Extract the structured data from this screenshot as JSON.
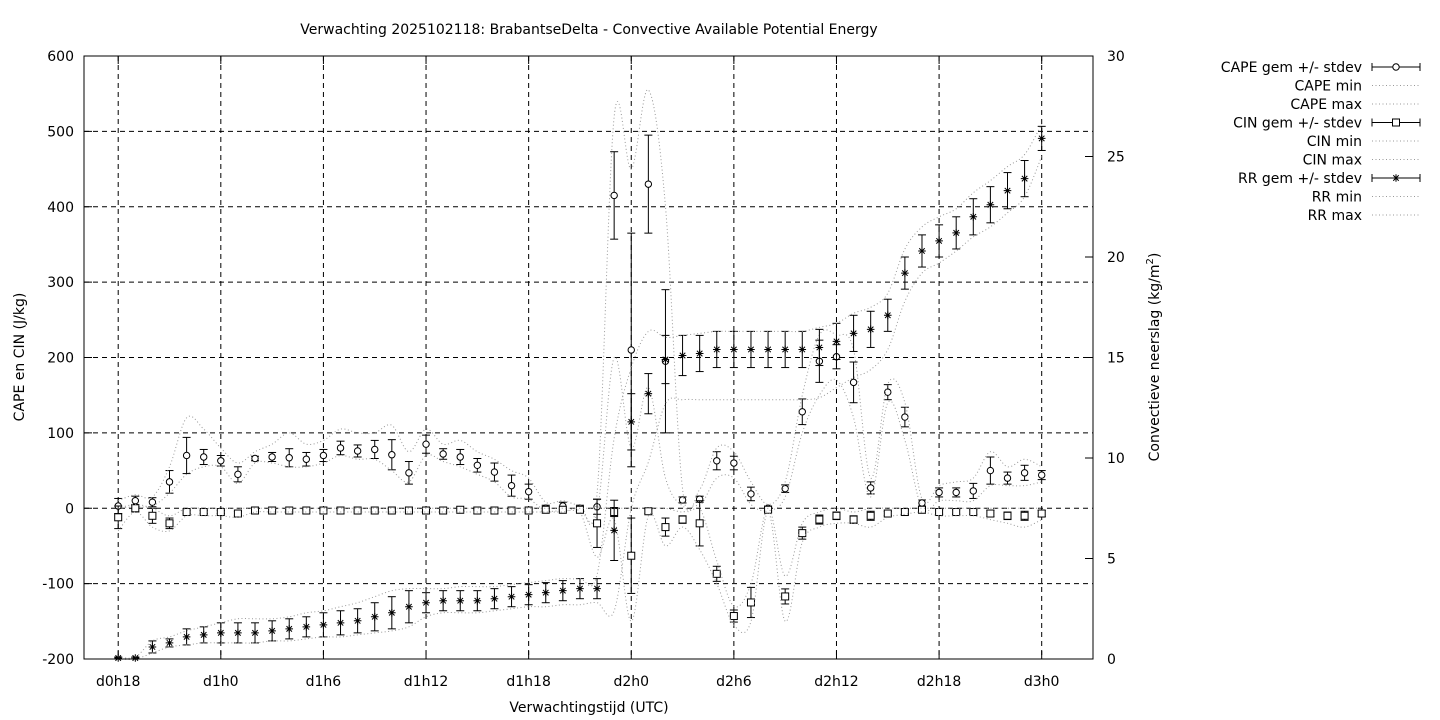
{
  "chart_data": {
    "type": "line",
    "title": "Verwachting 2025102118: BrabantseDelta - Convective Available Potential Energy",
    "xlabel": "Verwachtingstijd (UTC)",
    "ylabel": "CAPE en CIN (J/kg)",
    "y2label_main": "Convectieve neerslag (kg/m",
    "y2label_sup": "2",
    "y2label_end": ")",
    "x_unit": "hours since d0h18",
    "xlim": [
      -2,
      57
    ],
    "ylim": [
      -200,
      600
    ],
    "y2lim": [
      0,
      30
    ],
    "grid": true,
    "legend_position": "right",
    "xticks": [
      {
        "x": 0,
        "label": "d0h18"
      },
      {
        "x": 6,
        "label": "d1h0"
      },
      {
        "x": 12,
        "label": "d1h6"
      },
      {
        "x": 18,
        "label": "d1h12"
      },
      {
        "x": 24,
        "label": "d1h18"
      },
      {
        "x": 30,
        "label": "d2h0"
      },
      {
        "x": 36,
        "label": "d2h6"
      },
      {
        "x": 42,
        "label": "d2h12"
      },
      {
        "x": 48,
        "label": "d2h18"
      },
      {
        "x": 54,
        "label": "d3h0"
      }
    ],
    "yticks": [
      -200,
      -100,
      0,
      100,
      200,
      300,
      400,
      500,
      600
    ],
    "y2ticks": [
      0,
      5,
      10,
      15,
      20,
      25,
      30
    ],
    "legend": [
      "CAPE gem +/- stdev",
      "CAPE min",
      "CAPE max",
      "CIN gem +/- stdev",
      "CIN min",
      "CIN max",
      "RR gem +/- stdev",
      "RR min",
      "RR max"
    ],
    "x": [
      0,
      1,
      2,
      3,
      4,
      5,
      6,
      7,
      8,
      9,
      10,
      11,
      12,
      13,
      14,
      15,
      16,
      17,
      18,
      19,
      20,
      21,
      22,
      23,
      24,
      25,
      26,
      27,
      28,
      29,
      30,
      31,
      32,
      33,
      34,
      35,
      36,
      37,
      38,
      39,
      40,
      41,
      42,
      43,
      44,
      45,
      46,
      47,
      48,
      49,
      50,
      51,
      52,
      53,
      54
    ],
    "series": [
      {
        "name": "CAPE gem +/- stdev",
        "axis": "y1",
        "marker": "circle",
        "values": [
          3,
          10,
          8,
          35,
          70,
          68,
          63,
          45,
          66,
          68,
          67,
          65,
          70,
          80,
          76,
          78,
          71,
          47,
          85,
          72,
          68,
          57,
          48,
          30,
          22,
          0,
          3,
          0,
          2,
          415,
          210,
          430,
          195,
          11,
          12,
          63,
          60,
          19,
          0,
          26,
          128,
          195,
          201,
          167,
          27,
          154,
          121,
          7,
          21,
          21,
          23,
          50,
          40,
          47,
          44
        ],
        "err": [
          10,
          6,
          6,
          15,
          24,
          10,
          7,
          10,
          3,
          6,
          12,
          9,
          8,
          9,
          8,
          12,
          20,
          15,
          12,
          7,
          10,
          9,
          12,
          14,
          10,
          4,
          5,
          4,
          10,
          58,
          155,
          65,
          95,
          4,
          4,
          12,
          9,
          9,
          3,
          5,
          17,
          28,
          16,
          27,
          8,
          10,
          13,
          4,
          6,
          6,
          10,
          18,
          8,
          10,
          6
        ]
      },
      {
        "name": "CAPE min",
        "axis": "y1",
        "style": "dotted",
        "values": [
          0,
          2,
          3,
          20,
          45,
          55,
          55,
          33,
          60,
          60,
          55,
          55,
          60,
          70,
          65,
          65,
          50,
          35,
          70,
          62,
          55,
          45,
          35,
          15,
          12,
          -3,
          -3,
          -3,
          -5,
          200,
          80,
          160,
          40,
          3,
          3,
          40,
          40,
          5,
          -3,
          15,
          100,
          150,
          170,
          120,
          15,
          140,
          90,
          0,
          10,
          10,
          10,
          30,
          30,
          30,
          35
        ]
      },
      {
        "name": "CAPE max",
        "axis": "y1",
        "style": "dotted",
        "values": [
          10,
          18,
          15,
          55,
          120,
          105,
          80,
          60,
          75,
          85,
          100,
          85,
          90,
          105,
          100,
          100,
          110,
          75,
          105,
          85,
          90,
          75,
          65,
          50,
          40,
          8,
          10,
          5,
          20,
          520,
          450,
          555,
          400,
          25,
          25,
          80,
          75,
          35,
          5,
          35,
          150,
          230,
          230,
          210,
          40,
          165,
          140,
          12,
          30,
          35,
          40,
          75,
          55,
          65,
          55
        ]
      },
      {
        "name": "CIN gem +/- stdev",
        "axis": "y1",
        "marker": "square",
        "values": [
          -12,
          0,
          -10,
          -20,
          -5,
          -5,
          -5,
          -7,
          -3,
          -3,
          -3,
          -3,
          -3,
          -3,
          -3,
          -3,
          -3,
          -3,
          -3,
          -3,
          -2,
          -3,
          -3,
          -3,
          -3,
          -2,
          -2,
          -2,
          -20,
          -5,
          -63,
          -4,
          -25,
          -15,
          -20,
          -87,
          -143,
          -125,
          -2,
          -117,
          -33,
          -15,
          -10,
          -15,
          -10,
          -7,
          -5,
          -2,
          -5,
          -5,
          -5,
          -7,
          -10,
          -10,
          -7
        ],
        "err": [
          15,
          5,
          10,
          7,
          2,
          2,
          2,
          3,
          2,
          2,
          2,
          2,
          2,
          2,
          2,
          2,
          2,
          2,
          2,
          2,
          2,
          2,
          2,
          2,
          2,
          2,
          2,
          2,
          32,
          6,
          50,
          3,
          12,
          5,
          30,
          10,
          8,
          20,
          3,
          10,
          8,
          6,
          5,
          5,
          6,
          3,
          3,
          3,
          3,
          3,
          3,
          4,
          5,
          6,
          4
        ]
      },
      {
        "name": "CIN min",
        "axis": "y1",
        "style": "dotted",
        "values": [
          -30,
          -5,
          -25,
          -30,
          -10,
          -10,
          -10,
          -12,
          -5,
          -5,
          -5,
          -5,
          -5,
          -5,
          -5,
          -5,
          -5,
          -5,
          -5,
          -5,
          -5,
          -5,
          -5,
          -5,
          -5,
          -5,
          -5,
          -5,
          -65,
          -15,
          -150,
          -10,
          -50,
          -25,
          -55,
          -100,
          -155,
          -150,
          -5,
          -150,
          -45,
          -25,
          -20,
          -20,
          -25,
          -12,
          -8,
          -5,
          -10,
          -10,
          -10,
          -15,
          -20,
          -25,
          -15
        ]
      },
      {
        "name": "CIN max",
        "axis": "y1",
        "style": "dotted",
        "values": [
          0,
          5,
          0,
          -10,
          0,
          0,
          0,
          0,
          0,
          0,
          0,
          0,
          0,
          0,
          0,
          0,
          0,
          0,
          0,
          0,
          0,
          0,
          0,
          0,
          0,
          0,
          0,
          0,
          0,
          0,
          0,
          0,
          0,
          -5,
          0,
          -70,
          -130,
          -100,
          0,
          -90,
          -20,
          -5,
          0,
          -5,
          0,
          0,
          0,
          0,
          0,
          0,
          0,
          0,
          0,
          0,
          0
        ]
      },
      {
        "name": "RR gem +/- stdev",
        "axis": "y2",
        "marker": "star",
        "values": [
          0.05,
          0.05,
          0.6,
          0.8,
          1.1,
          1.2,
          1.3,
          1.3,
          1.3,
          1.4,
          1.5,
          1.6,
          1.7,
          1.8,
          1.9,
          2.1,
          2.3,
          2.6,
          2.8,
          2.9,
          2.9,
          2.9,
          3.0,
          3.1,
          3.2,
          3.3,
          3.4,
          3.5,
          3.5,
          6.4,
          11.8,
          13.2,
          14.9,
          15.1,
          15.2,
          15.4,
          15.4,
          15.4,
          15.4,
          15.4,
          15.4,
          15.5,
          15.8,
          16.2,
          16.4,
          17.1,
          19.2,
          20.3,
          20.8,
          21.2,
          22.0,
          22.6,
          23.3,
          23.9,
          25.9
        ],
        "err": [
          0.05,
          0.05,
          0.3,
          0.2,
          0.4,
          0.4,
          0.5,
          0.5,
          0.5,
          0.5,
          0.5,
          0.5,
          0.6,
          0.6,
          0.6,
          0.7,
          0.8,
          0.8,
          0.5,
          0.5,
          0.5,
          0.5,
          0.5,
          0.5,
          0.5,
          0.5,
          0.5,
          0.5,
          0.5,
          1.5,
          1.4,
          1.0,
          1.2,
          1.0,
          0.9,
          0.9,
          0.9,
          0.9,
          0.9,
          0.9,
          0.9,
          0.9,
          0.9,
          0.9,
          0.9,
          0.8,
          0.8,
          0.8,
          0.8,
          0.8,
          0.9,
          0.9,
          0.9,
          0.9,
          0.6
        ]
      },
      {
        "name": "RR min",
        "axis": "y2",
        "style": "dotted",
        "values": [
          0,
          0,
          0.3,
          0.6,
          0.7,
          0.8,
          0.8,
          0.8,
          0.8,
          0.9,
          0.9,
          1.0,
          1.1,
          1.1,
          1.2,
          1.3,
          1.4,
          1.6,
          2.1,
          2.3,
          2.3,
          2.3,
          2.4,
          2.5,
          2.6,
          2.6,
          2.7,
          2.7,
          2.8,
          2.4,
          7.5,
          9.8,
          12.7,
          12.9,
          12.9,
          12.9,
          12.9,
          12.9,
          12.9,
          12.9,
          12.9,
          13.0,
          13.5,
          14.0,
          14.4,
          15.4,
          17.8,
          19.2,
          19.7,
          20.3,
          21.0,
          21.5,
          22.2,
          23.0,
          25.0
        ]
      },
      {
        "name": "RR max",
        "axis": "y2",
        "style": "dotted",
        "values": [
          0.1,
          0.1,
          0.9,
          1.1,
          1.4,
          1.6,
          1.8,
          2.0,
          2.0,
          2.0,
          2.1,
          2.3,
          2.4,
          2.6,
          2.8,
          3.1,
          3.4,
          3.5,
          3.5,
          3.5,
          3.6,
          3.6,
          3.6,
          3.7,
          3.8,
          3.9,
          4.0,
          4.0,
          4.2,
          11.0,
          14.5,
          16.3,
          16.0,
          16.1,
          16.2,
          16.3,
          16.3,
          16.3,
          16.3,
          16.3,
          16.3,
          16.5,
          16.7,
          17.2,
          17.5,
          18.2,
          20.4,
          21.5,
          22.0,
          22.4,
          23.2,
          23.8,
          24.5,
          25.1,
          26.6
        ]
      }
    ]
  }
}
